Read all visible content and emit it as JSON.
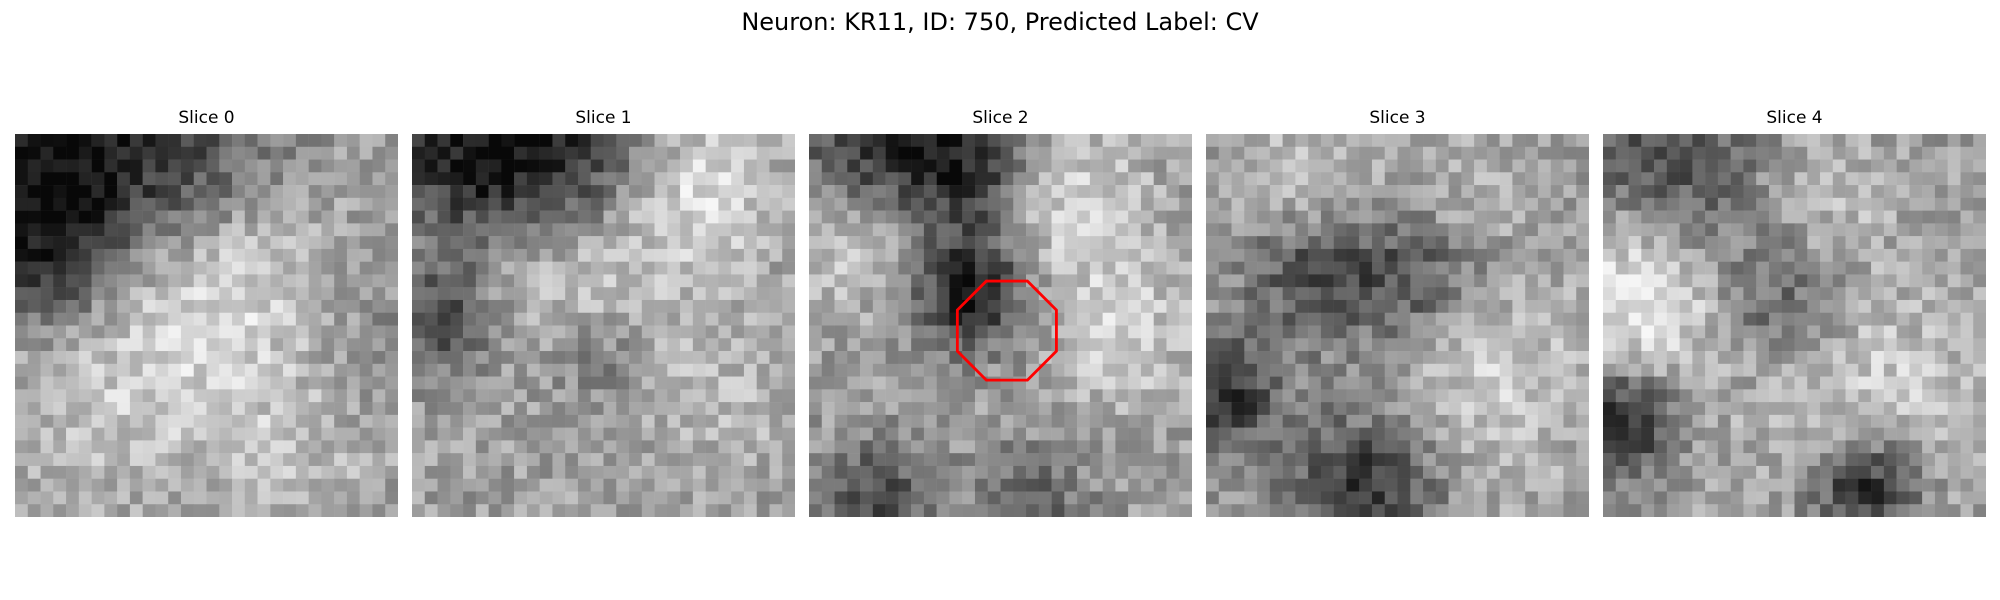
{
  "figure": {
    "title": "Neuron: KR11, ID: 750, Predicted Label: CV"
  },
  "panels": [
    {
      "title": "Slice 0"
    },
    {
      "title": "Slice 1"
    },
    {
      "title": "Slice 2",
      "has_roi": true
    },
    {
      "title": "Slice 3"
    },
    {
      "title": "Slice 4"
    }
  ],
  "roi": {
    "color": "#ff0000",
    "shape": "octagon"
  }
}
